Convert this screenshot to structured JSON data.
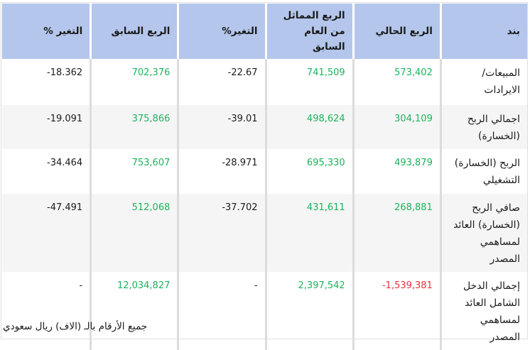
{
  "table": {
    "headers": [
      "بند",
      "الربع الحالي",
      "الربع المماثل من العام السابق",
      "التغير%",
      "الربع السابق",
      "التغير %"
    ],
    "rows": [
      {
        "item": "المبيعات/ الايرادات",
        "current_quarter": "573,402",
        "same_quarter_last_year": "741,509",
        "change_yoy": "22.67-",
        "previous_quarter": "702,376",
        "change_qoq": "18.362-"
      },
      {
        "item": "اجمالي الربح (الخسارة)",
        "current_quarter": "304,109",
        "same_quarter_last_year": "498,624",
        "change_yoy": "39.01-",
        "previous_quarter": "375,866",
        "change_qoq": "19.091-"
      },
      {
        "item": "الربح (الخسارة) التشغيلي",
        "current_quarter": "493,879",
        "same_quarter_last_year": "695,330",
        "change_yoy": "28.971-",
        "previous_quarter": "753,607",
        "change_qoq": "34.464-"
      },
      {
        "item": "صافي الربح (الخسارة) العائد لمساهمي المصدر",
        "current_quarter": "268,881",
        "same_quarter_last_year": "431,611",
        "change_yoy": "37.702-",
        "previous_quarter": "512,068",
        "change_qoq": "47.491-"
      },
      {
        "item": "إجمالي الدخل الشامل العائد لمساهمي المصدر",
        "current_quarter": "1,539,381-",
        "same_quarter_last_year": "2,397,542",
        "change_yoy": "-",
        "previous_quarter": "12,034,827",
        "change_qoq": "-"
      }
    ]
  },
  "footnote": "جميع الأرقام بالـ (الاف) ريال سعودي",
  "colors": {
    "header_bg": "#b4c6eb",
    "positive": "#1bb45c",
    "negative": "#e8323c",
    "alt_row_bg": "#f5f5f5",
    "divider": "#dcdcdc"
  }
}
